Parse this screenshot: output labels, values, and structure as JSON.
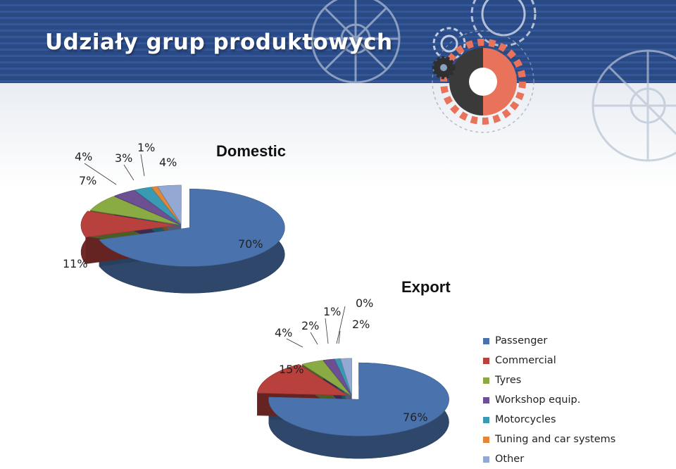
{
  "slide": {
    "title": "Udziały grup produktowych"
  },
  "colors": {
    "series": [
      "#4a73ad",
      "#b8413e",
      "#8aaa44",
      "#6d4f93",
      "#3b9ab3",
      "#e0873a",
      "#93a8d2"
    ],
    "banner": "#2a4a86",
    "gear_orange": "#e8735a",
    "gear_dark": "#3a3a3a"
  },
  "chart_data": [
    {
      "type": "pie",
      "title": "Domestic",
      "categories": [
        "Passenger",
        "Commercial",
        "Tyres",
        "Workshop equip.",
        "Motorcycles",
        "Tuning and car systems",
        "Other"
      ],
      "values": [
        70,
        11,
        7,
        4,
        3,
        1,
        4
      ],
      "labels": [
        "70%",
        "11%",
        "7%",
        "4%",
        "3%",
        "1%",
        "4%"
      ],
      "exploded_slices": [
        "Passenger"
      ],
      "legend": "shared, right"
    },
    {
      "type": "pie",
      "title": "Export",
      "categories": [
        "Passenger",
        "Commercial",
        "Tyres",
        "Workshop equip.",
        "Motorcycles",
        "Tuning and car systems",
        "Other"
      ],
      "values": [
        76,
        15,
        4,
        2,
        1,
        0,
        2
      ],
      "labels": [
        "76%",
        "15%",
        "4%",
        "2%",
        "1%",
        "0%",
        "2%"
      ],
      "exploded_slices": [
        "Passenger"
      ],
      "legend": "right"
    }
  ],
  "legend": {
    "items": [
      "Passenger",
      "Commercial",
      "Tyres",
      "Workshop equip.",
      "Motorcycles",
      "Tuning and car systems",
      "Other"
    ]
  }
}
